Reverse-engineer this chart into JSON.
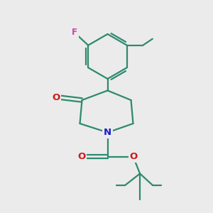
{
  "bg_color": "#ebebeb",
  "bond_color": "#2d8a6e",
  "N_color": "#1a1acc",
  "O_color": "#cc1a1a",
  "F_color": "#cc44aa",
  "line_width": 1.6,
  "figsize": [
    3.0,
    3.0
  ],
  "dpi": 100,
  "xlim": [
    0,
    10
  ],
  "ylim": [
    0,
    10
  ]
}
